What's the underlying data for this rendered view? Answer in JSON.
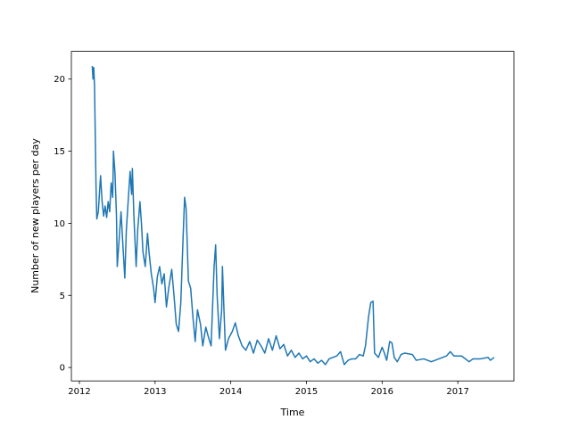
{
  "chart_data": {
    "type": "line",
    "x_label": "Time",
    "y_label": "Number of new players per day",
    "x": [
      2012.17,
      2012.18,
      2012.19,
      2012.2,
      2012.22,
      2012.23,
      2012.25,
      2012.27,
      2012.28,
      2012.3,
      2012.32,
      2012.34,
      2012.36,
      2012.38,
      2012.4,
      2012.42,
      2012.44,
      2012.45,
      2012.47,
      2012.49,
      2012.5,
      2012.52,
      2012.55,
      2012.58,
      2012.6,
      2012.62,
      2012.65,
      2012.67,
      2012.69,
      2012.7,
      2012.72,
      2012.75,
      2012.77,
      2012.8,
      2012.82,
      2012.84,
      2012.87,
      2012.9,
      2012.92,
      2012.95,
      2012.98,
      2013.0,
      2013.03,
      2013.06,
      2013.09,
      2013.12,
      2013.15,
      2013.18,
      2013.22,
      2013.25,
      2013.28,
      2013.31,
      2013.34,
      2013.37,
      2013.39,
      2013.41,
      2013.44,
      2013.47,
      2013.5,
      2013.53,
      2013.56,
      2013.6,
      2013.63,
      2013.67,
      2013.7,
      2013.74,
      2013.78,
      2013.8,
      2013.82,
      2013.85,
      2013.88,
      2013.89,
      2013.91,
      2013.93,
      2013.97,
      2014.02,
      2014.06,
      2014.1,
      2014.15,
      2014.2,
      2014.25,
      2014.3,
      2014.35,
      2014.4,
      2014.45,
      2014.5,
      2014.55,
      2014.6,
      2014.65,
      2014.7,
      2014.75,
      2014.8,
      2014.85,
      2014.9,
      2014.95,
      2015.0,
      2015.05,
      2015.1,
      2015.15,
      2015.2,
      2015.25,
      2015.3,
      2015.35,
      2015.4,
      2015.45,
      2015.5,
      2015.55,
      2015.6,
      2015.65,
      2015.7,
      2015.75,
      2015.78,
      2015.82,
      2015.85,
      2015.88,
      2015.9,
      2015.95,
      2016.0,
      2016.03,
      2016.06,
      2016.1,
      2016.13,
      2016.16,
      2016.2,
      2016.25,
      2016.3,
      2016.4,
      2016.45,
      2016.55,
      2016.65,
      2016.75,
      2016.85,
      2016.9,
      2016.95,
      2017.05,
      2017.15,
      2017.2,
      2017.3,
      2017.4,
      2017.43,
      2017.48
    ],
    "series": [
      {
        "color": "#1f77b4",
        "values": [
          20.9,
          20.0,
          20.8,
          19.5,
          12.5,
          10.3,
          10.8,
          12.5,
          13.3,
          11.5,
          10.5,
          11.2,
          10.4,
          11.5,
          10.8,
          12.8,
          11.8,
          15.0,
          13.5,
          10.5,
          7.0,
          8.5,
          10.8,
          8.0,
          6.2,
          9.5,
          12.0,
          13.6,
          12.0,
          13.8,
          10.5,
          7.0,
          9.5,
          11.5,
          10.0,
          8.0,
          7.0,
          9.3,
          8.0,
          6.5,
          5.5,
          4.5,
          6.3,
          7.0,
          5.8,
          6.5,
          4.2,
          5.5,
          6.8,
          5.0,
          3.0,
          2.5,
          4.5,
          9.0,
          11.8,
          11.0,
          6.0,
          5.5,
          3.5,
          1.8,
          4.0,
          3.0,
          1.5,
          2.8,
          2.2,
          1.5,
          7.0,
          8.5,
          5.0,
          2.0,
          4.0,
          7.0,
          4.0,
          1.2,
          2.0,
          2.5,
          3.1,
          2.2,
          1.5,
          1.2,
          1.8,
          1.0,
          1.9,
          1.5,
          1.0,
          2.0,
          1.2,
          2.2,
          1.3,
          1.6,
          0.8,
          1.2,
          0.7,
          1.0,
          0.6,
          0.8,
          0.4,
          0.6,
          0.3,
          0.5,
          0.2,
          0.6,
          0.7,
          0.8,
          1.1,
          0.2,
          0.5,
          0.6,
          0.6,
          0.9,
          0.8,
          1.5,
          3.5,
          4.5,
          4.6,
          1.0,
          0.7,
          1.4,
          1.0,
          0.5,
          1.8,
          1.7,
          0.7,
          0.4,
          0.9,
          1.0,
          0.9,
          0.5,
          0.6,
          0.4,
          0.6,
          0.8,
          1.1,
          0.8,
          0.8,
          0.4,
          0.6,
          0.6,
          0.7,
          0.5,
          0.7
        ]
      }
    ],
    "xlim": [
      2011.894,
      2017.741
    ],
    "xticks": [
      2012,
      2013,
      2014,
      2015,
      2016,
      2017
    ],
    "ylim": [
      -0.93,
      21.92
    ],
    "yticks": [
      0,
      5,
      10,
      15,
      20
    ]
  }
}
